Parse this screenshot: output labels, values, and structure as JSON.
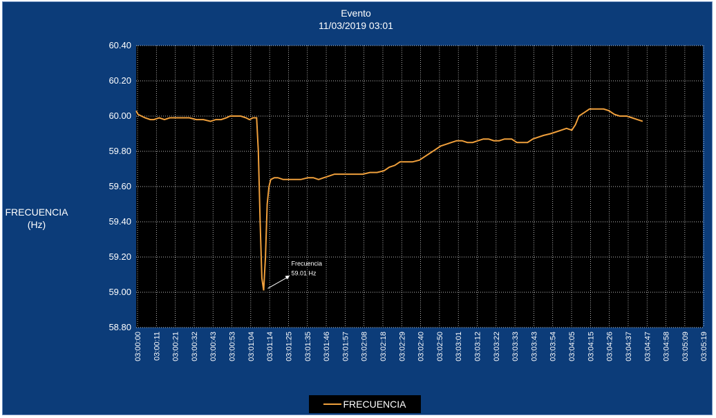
{
  "chart_data": {
    "type": "line",
    "title": "Evento",
    "subtitle": "11/03/2019 03:01",
    "ylabel": "FRECUENCIA (Hz)",
    "ylabel_lines": [
      "FRECUENCIA",
      "(Hz)"
    ],
    "ylim": [
      58.8,
      60.4
    ],
    "yticks": [
      "58.80",
      "59.00",
      "59.20",
      "59.40",
      "59.60",
      "59.80",
      "60.00",
      "60.20",
      "60.40"
    ],
    "x_tick_labels": [
      "03:00:00",
      "03:00:11",
      "03:00:21",
      "03:00:32",
      "03:00:43",
      "03:00:53",
      "03:01:04",
      "03:01:14",
      "03:01:25",
      "03:01:35",
      "03:01:46",
      "03:01:57",
      "03:02:08",
      "03:02:18",
      "03:02:29",
      "03:02:40",
      "03:02:50",
      "03:03:01",
      "03:03:12",
      "03:03:22",
      "03:03:33",
      "03:03:43",
      "03:03:54",
      "03:04:05",
      "03:04:15",
      "03:04:26",
      "03:04:37",
      "03:04:47",
      "03:04:58",
      "03:05:09",
      "03:05:19"
    ],
    "grid": true,
    "legend_position": "bottom",
    "series": [
      {
        "name": "FRECUENCIA",
        "color": "#f0a03c",
        "points": [
          [
            0,
            60.03
          ],
          [
            1,
            60.01
          ],
          [
            3,
            60.0
          ],
          [
            5,
            59.99
          ],
          [
            8,
            59.98
          ],
          [
            10,
            59.98
          ],
          [
            13,
            59.99
          ],
          [
            16,
            59.98
          ],
          [
            19,
            59.99
          ],
          [
            22,
            59.99
          ],
          [
            26,
            59.99
          ],
          [
            30,
            59.99
          ],
          [
            34,
            59.98
          ],
          [
            38,
            59.98
          ],
          [
            42,
            59.97
          ],
          [
            45,
            59.98
          ],
          [
            48,
            59.98
          ],
          [
            51,
            59.99
          ],
          [
            53,
            60.0
          ],
          [
            56,
            60.0
          ],
          [
            59,
            60.0
          ],
          [
            62,
            59.99
          ],
          [
            64,
            59.98
          ],
          [
            66,
            59.99
          ],
          [
            68,
            59.99
          ],
          [
            69,
            59.8
          ],
          [
            70,
            59.4
          ],
          [
            71,
            59.08
          ],
          [
            72,
            59.01
          ],
          [
            73,
            59.2
          ],
          [
            74,
            59.5
          ],
          [
            75,
            59.6
          ],
          [
            76,
            59.64
          ],
          [
            78,
            59.65
          ],
          [
            80,
            59.65
          ],
          [
            83,
            59.64
          ],
          [
            88,
            59.64
          ],
          [
            93,
            59.64
          ],
          [
            97,
            59.65
          ],
          [
            100,
            59.65
          ],
          [
            103,
            59.64
          ],
          [
            106,
            59.65
          ],
          [
            109,
            59.66
          ],
          [
            112,
            59.67
          ],
          [
            118,
            59.67
          ],
          [
            124,
            59.67
          ],
          [
            128,
            59.67
          ],
          [
            132,
            59.68
          ],
          [
            136,
            59.68
          ],
          [
            140,
            59.69
          ],
          [
            143,
            59.71
          ],
          [
            146,
            59.72
          ],
          [
            149,
            59.74
          ],
          [
            152,
            59.74
          ],
          [
            156,
            59.74
          ],
          [
            160,
            59.75
          ],
          [
            163,
            59.77
          ],
          [
            166,
            59.79
          ],
          [
            169,
            59.81
          ],
          [
            172,
            59.83
          ],
          [
            175,
            59.84
          ],
          [
            178,
            59.85
          ],
          [
            181,
            59.86
          ],
          [
            184,
            59.86
          ],
          [
            187,
            59.85
          ],
          [
            190,
            59.85
          ],
          [
            193,
            59.86
          ],
          [
            196,
            59.87
          ],
          [
            199,
            59.87
          ],
          [
            202,
            59.86
          ],
          [
            205,
            59.86
          ],
          [
            208,
            59.87
          ],
          [
            212,
            59.87
          ],
          [
            215,
            59.85
          ],
          [
            218,
            59.85
          ],
          [
            221,
            59.85
          ],
          [
            224,
            59.87
          ],
          [
            227,
            59.88
          ],
          [
            230,
            59.89
          ],
          [
            234,
            59.9
          ],
          [
            237,
            59.91
          ],
          [
            240,
            59.92
          ],
          [
            243,
            59.93
          ],
          [
            246,
            59.92
          ],
          [
            248,
            59.95
          ],
          [
            250,
            60.0
          ],
          [
            253,
            60.02
          ],
          [
            256,
            60.04
          ],
          [
            260,
            60.04
          ],
          [
            264,
            60.04
          ],
          [
            267,
            60.03
          ],
          [
            270,
            60.01
          ],
          [
            273,
            60.0
          ],
          [
            277,
            60.0
          ],
          [
            280,
            59.99
          ],
          [
            283,
            59.98
          ],
          [
            286,
            59.97
          ]
        ]
      }
    ],
    "annotation": {
      "lines": [
        "Frecuencia",
        "59.01 Hz"
      ],
      "x": 72,
      "y": 59.01
    }
  }
}
